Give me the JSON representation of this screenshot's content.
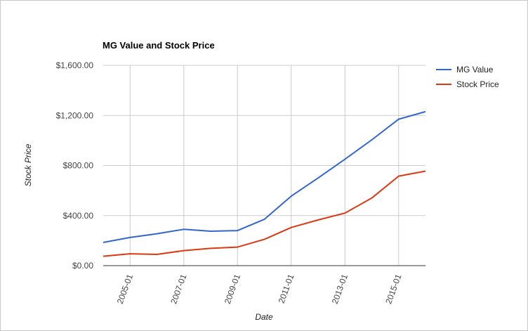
{
  "chart_data": {
    "type": "line",
    "title": "MG Value and Stock Price",
    "xlabel": "Date",
    "ylabel": "Stock Price",
    "ylim": [
      0,
      1600
    ],
    "xlim": [
      "2004-01",
      "2016-01"
    ],
    "y_ticks": [
      {
        "value": 0,
        "label": "$0.00"
      },
      {
        "value": 400,
        "label": "$400.00"
      },
      {
        "value": 800,
        "label": "$800.00"
      },
      {
        "value": 1200,
        "label": "$1,200.00"
      },
      {
        "value": 1600,
        "label": "$1,600.00"
      }
    ],
    "x_ticks": [
      {
        "value": "2005-01",
        "label": "2005-01"
      },
      {
        "value": "2007-01",
        "label": "2007-01"
      },
      {
        "value": "2009-01",
        "label": "2009-01"
      },
      {
        "value": "2011-01",
        "label": "2011-01"
      },
      {
        "value": "2013-01",
        "label": "2013-01"
      },
      {
        "value": "2015-01",
        "label": "2015-01"
      }
    ],
    "grid": true,
    "legend_position": "right",
    "series": [
      {
        "name": "MG Value",
        "color": "#3366cc",
        "points": [
          {
            "x": "2004-01",
            "y": 185
          },
          {
            "x": "2005-01",
            "y": 225
          },
          {
            "x": "2006-01",
            "y": 255
          },
          {
            "x": "2007-01",
            "y": 290
          },
          {
            "x": "2008-01",
            "y": 275
          },
          {
            "x": "2009-01",
            "y": 280
          },
          {
            "x": "2010-01",
            "y": 370
          },
          {
            "x": "2011-01",
            "y": 555
          },
          {
            "x": "2012-01",
            "y": 700
          },
          {
            "x": "2013-01",
            "y": 850
          },
          {
            "x": "2014-01",
            "y": 1005
          },
          {
            "x": "2015-01",
            "y": 1170
          },
          {
            "x": "2016-01",
            "y": 1230
          }
        ]
      },
      {
        "name": "Stock Price",
        "color": "#dc3912",
        "points": [
          {
            "x": "2004-01",
            "y": 75
          },
          {
            "x": "2005-01",
            "y": 95
          },
          {
            "x": "2006-01",
            "y": 90
          },
          {
            "x": "2007-01",
            "y": 120
          },
          {
            "x": "2008-01",
            "y": 138
          },
          {
            "x": "2009-01",
            "y": 148
          },
          {
            "x": "2010-01",
            "y": 210
          },
          {
            "x": "2011-01",
            "y": 305
          },
          {
            "x": "2012-01",
            "y": 365
          },
          {
            "x": "2013-01",
            "y": 420
          },
          {
            "x": "2014-01",
            "y": 540
          },
          {
            "x": "2015-01",
            "y": 715
          },
          {
            "x": "2016-01",
            "y": 755
          }
        ]
      }
    ]
  }
}
